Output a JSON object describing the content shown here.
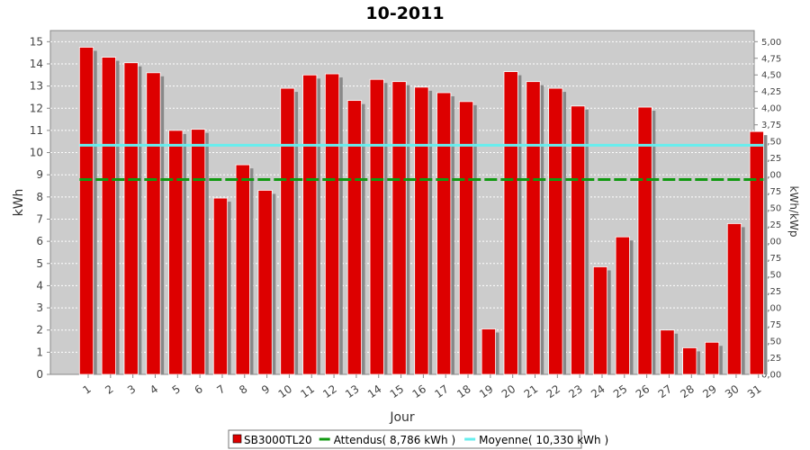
{
  "chart_data": {
    "type": "bar",
    "title": "10-2011",
    "xlabel": "Jour",
    "ylabel": "kWh",
    "ylabel_right": "kWh/kWp",
    "ylim": [
      0,
      15.5
    ],
    "yticks": [
      0,
      1,
      2,
      3,
      4,
      5,
      6,
      7,
      8,
      9,
      10,
      11,
      12,
      13,
      14,
      15
    ],
    "ylim_right": [
      0,
      5.166
    ],
    "yticks_right": [
      "0,00",
      "0,25",
      "0,50",
      "0,75",
      "1,00",
      "1,25",
      "1,50",
      "1,75",
      "2,00",
      "2,25",
      "2,50",
      "2,75",
      "3,00",
      "3,25",
      "3,50",
      "3,75",
      "4,00",
      "4,25",
      "4,50",
      "4,75",
      "5,00"
    ],
    "categories": [
      "1",
      "2",
      "3",
      "4",
      "5",
      "6",
      "7",
      "8",
      "9",
      "10",
      "11",
      "12",
      "13",
      "14",
      "15",
      "16",
      "17",
      "18",
      "19",
      "20",
      "21",
      "22",
      "23",
      "24",
      "25",
      "26",
      "27",
      "28",
      "29",
      "30",
      "31"
    ],
    "series": [
      {
        "name": "SB3000TL20",
        "type": "bar",
        "color": "#dd0000",
        "values": [
          14.75,
          14.3,
          14.05,
          13.6,
          11.0,
          11.05,
          7.95,
          9.45,
          8.3,
          12.9,
          13.5,
          13.55,
          12.35,
          13.3,
          13.2,
          12.95,
          12.7,
          12.3,
          2.05,
          13.65,
          13.2,
          12.9,
          12.1,
          4.85,
          6.2,
          12.05,
          2.0,
          1.2,
          1.45,
          6.8,
          10.95
        ]
      },
      {
        "name": "Attendus( 8,786 kWh )",
        "type": "line",
        "style": "dashed",
        "color": "#119911",
        "value": 8.786
      },
      {
        "name": "Moyenne( 10,330 kWh )",
        "type": "line",
        "style": "solid",
        "color": "#66eeee",
        "value": 10.33
      }
    ],
    "grid": true,
    "legend_position": "bottom",
    "background_color": "#cccccc"
  }
}
